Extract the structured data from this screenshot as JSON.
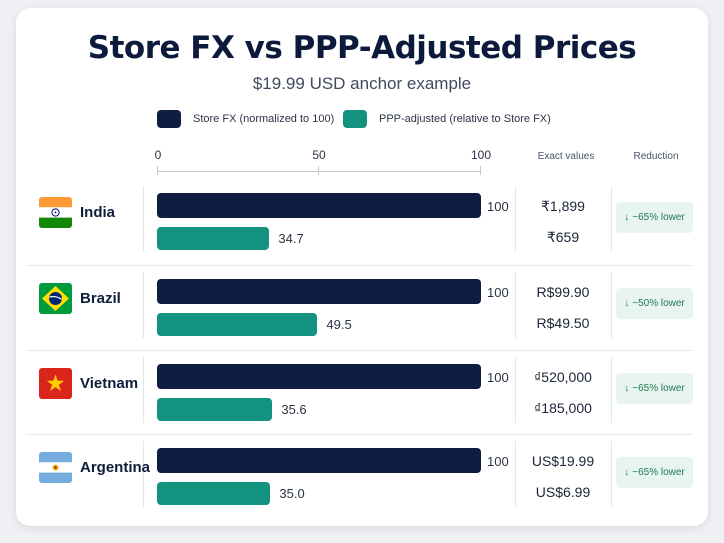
{
  "chart_data": {
    "type": "bar",
    "orientation": "horizontal",
    "title": "Store FX vs PPP-Adjusted Prices",
    "subtitle": "$19.99 USD anchor example",
    "xlim": [
      0,
      100
    ],
    "xticks": [
      "0",
      "50",
      "100"
    ],
    "legend_position": "top",
    "columns": {
      "exact": "Exact values",
      "reduction": "Reduction"
    },
    "categories": [
      "India",
      "Brazil",
      "Vietnam",
      "Argentina"
    ],
    "series": [
      {
        "name": "Store FX (normalized to 100)",
        "color": "#0f1d42",
        "values": [
          100,
          100,
          100,
          100
        ],
        "labels": [
          "100",
          "100",
          "100",
          "100"
        ],
        "exact": [
          "₹1,899",
          "R$99.90",
          "₫520,000",
          "US$19.99"
        ]
      },
      {
        "name": "PPP-adjusted (relative to Store FX)",
        "color": "#12927f",
        "values": [
          34.7,
          49.5,
          35.6,
          35.0
        ],
        "labels": [
          "34.7",
          "49.5",
          "35.6",
          "35.0"
        ],
        "exact": [
          "₹659",
          "R$49.50",
          "₫185,000",
          "US$6.99"
        ]
      }
    ],
    "reduction": [
      "~65% lower",
      "~50% lower",
      "~65% lower",
      "~65% lower"
    ],
    "reduction_icon": "arrow-down-icon",
    "flag_icons": [
      "india-flag-icon",
      "brazil-flag-icon",
      "vietnam-flag-icon",
      "argentina-flag-icon"
    ]
  }
}
